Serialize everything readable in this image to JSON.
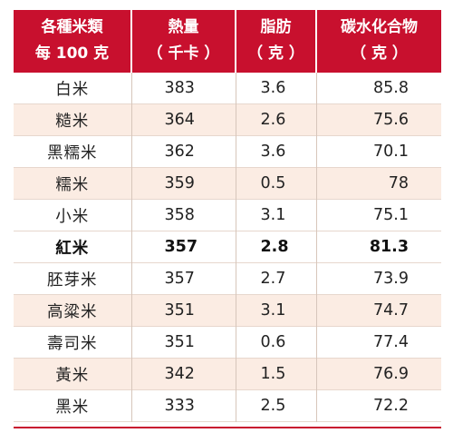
{
  "header": {
    "col1": [
      "各種米類",
      "每 100 克"
    ],
    "col2": [
      "熱量",
      "（ 千卡 ）"
    ],
    "col3": [
      "脂肪",
      "（ 克 ）"
    ],
    "col4": [
      "碳水化合物",
      "（ 克 ）"
    ]
  },
  "rows": [
    {
      "name": "白米",
      "kcal": "383",
      "fat": "3.6",
      "carb": "85.8"
    },
    {
      "name": "糙米",
      "kcal": "364",
      "fat": "2.6",
      "carb": "75.6"
    },
    {
      "name": "黑糯米",
      "kcal": "362",
      "fat": "3.6",
      "carb": "70.1"
    },
    {
      "name": "糯米",
      "kcal": "359",
      "fat": "0.5",
      "carb": "78"
    },
    {
      "name": "小米",
      "kcal": "358",
      "fat": "3.1",
      "carb": "75.1"
    },
    {
      "name": "紅米",
      "kcal": "357",
      "fat": "2.8",
      "carb": "81.3"
    },
    {
      "name": "胚芽米",
      "kcal": "357",
      "fat": "2.7",
      "carb": "73.9"
    },
    {
      "name": "高粱米",
      "kcal": "351",
      "fat": "3.1",
      "carb": "74.7"
    },
    {
      "name": "壽司米",
      "kcal": "351",
      "fat": "0.6",
      "carb": "77.4"
    },
    {
      "name": "黃米",
      "kcal": "342",
      "fat": "1.5",
      "carb": "76.9"
    },
    {
      "name": "黑米",
      "kcal": "333",
      "fat": "2.5",
      "carb": "72.2"
    }
  ],
  "highlight_row": "紅米",
  "colors": {
    "header_bg": "#c8102e",
    "stripe_bg": "#fbece3"
  }
}
